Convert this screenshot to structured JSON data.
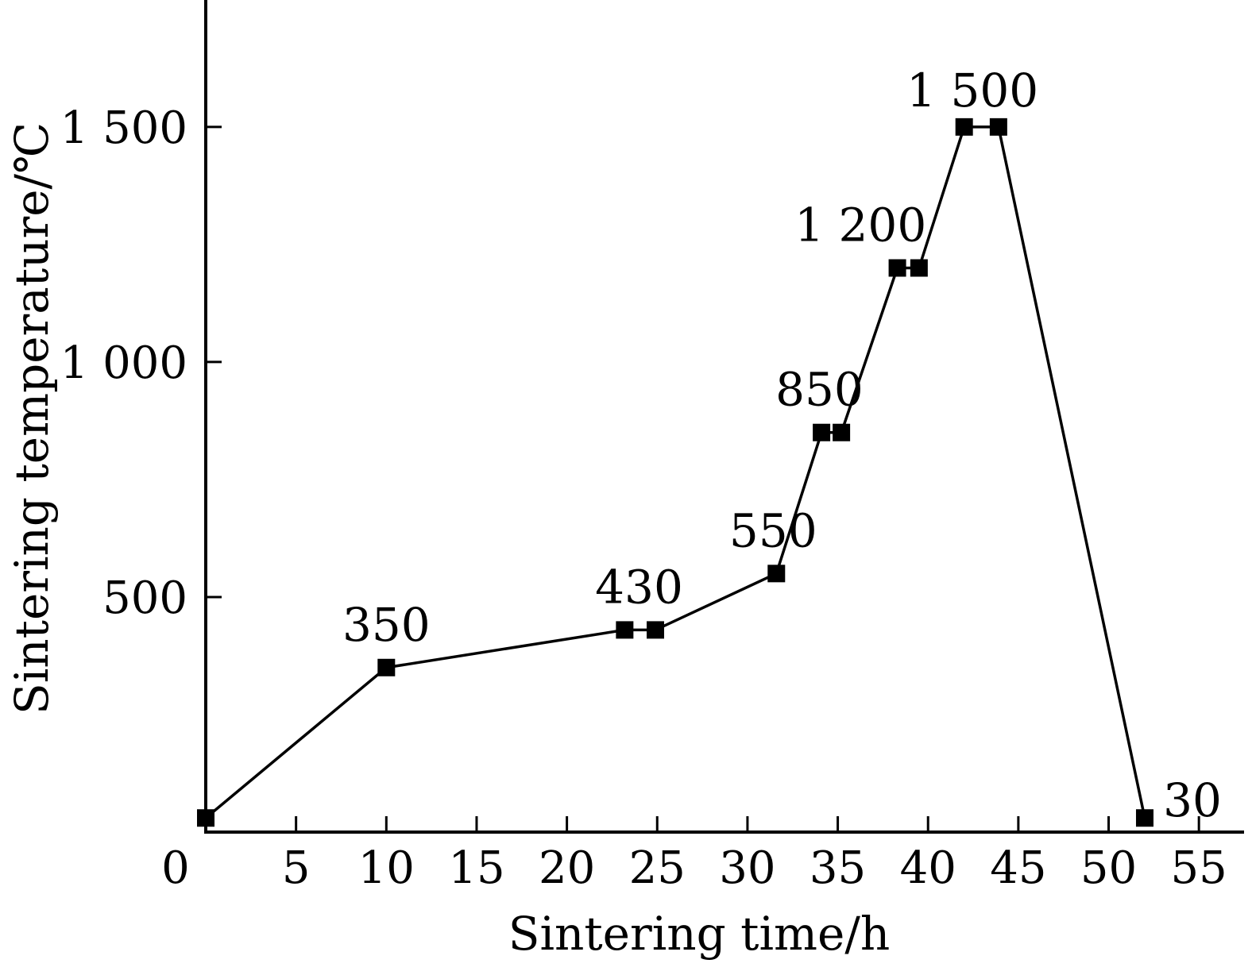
{
  "chart_data": {
    "type": "line",
    "xlabel": "Sintering time/h",
    "ylabel": "Sintering temperature/℃",
    "xlim": [
      0,
      57.5
    ],
    "ylim": [
      0,
      1770
    ],
    "x_ticks": [
      0,
      5,
      10,
      15,
      20,
      25,
      30,
      35,
      40,
      45,
      50,
      55
    ],
    "x_tick_labels": [
      "0",
      "5",
      "10",
      "15",
      "20",
      "25",
      "30",
      "35",
      "40",
      "45",
      "50",
      "55"
    ],
    "y_ticks": [
      500,
      1000,
      1500
    ],
    "y_tick_labels": [
      "500",
      "1 000",
      "1 500"
    ],
    "series": [
      {
        "x": [
          0,
          10,
          23.2,
          24.9,
          31.6,
          34.1,
          35.2,
          38.3,
          39.5,
          42,
          43.9,
          52
        ],
        "y": [
          30,
          350,
          430,
          430,
          550,
          850,
          850,
          1200,
          1200,
          1500,
          1500,
          30
        ],
        "marker": "square",
        "color": "#000000"
      }
    ],
    "annotations": [
      {
        "text": "350",
        "x": 10,
        "y": 350
      },
      {
        "text": "430",
        "x": 24,
        "y": 430
      },
      {
        "text": "550",
        "x": 31.6,
        "y": 550
      },
      {
        "text": "850",
        "x": 34.6,
        "y": 850
      },
      {
        "text": "1 200",
        "x": 38.9,
        "y": 1200
      },
      {
        "text": "1 500",
        "x": 42.9,
        "y": 1500
      },
      {
        "text": "30",
        "x": 52,
        "y": 30
      }
    ],
    "grid": false,
    "legend": "none"
  }
}
